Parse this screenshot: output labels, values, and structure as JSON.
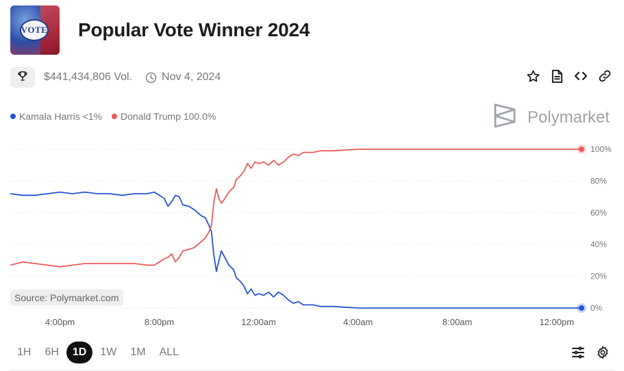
{
  "market": {
    "title": "Popular Vote Winner 2024",
    "thumbnail_text": "VOTE",
    "volume": "$441,434,806 Vol.",
    "date": "Nov 4, 2024",
    "brand": "Polymarket",
    "source": "Source: Polymarket.com"
  },
  "icons": {
    "trophy": "trophy-icon",
    "clock": "clock-icon",
    "star": "star-icon",
    "document": "document-icon",
    "embed": "code-icon",
    "link": "link-icon",
    "filters": "sliders-icon",
    "settings": "gear-icon"
  },
  "legend": [
    {
      "label": "Kamala Harris <1%",
      "color": "#2553d6"
    },
    {
      "label": "Donald Trump 100.0%",
      "color": "#ec5a5a"
    }
  ],
  "time_ranges": [
    {
      "label": "1H",
      "active": false
    },
    {
      "label": "6H",
      "active": false
    },
    {
      "label": "1D",
      "active": true
    },
    {
      "label": "1W",
      "active": false
    },
    {
      "label": "1M",
      "active": false
    },
    {
      "label": "ALL",
      "active": false
    }
  ],
  "chart_data": {
    "type": "line",
    "xlabel": "",
    "ylabel": "",
    "ylim": [
      0,
      100
    ],
    "xlim": [
      14.0,
      37.0
    ],
    "x_unit": "hour",
    "x_ticks": [
      {
        "x": 16,
        "label": "4:00pm"
      },
      {
        "x": 20,
        "label": "8:00pm"
      },
      {
        "x": 24,
        "label": "12:00am"
      },
      {
        "x": 28,
        "label": "4:00am"
      },
      {
        "x": 32,
        "label": "8:00am"
      },
      {
        "x": 36,
        "label": "12:00pm"
      }
    ],
    "y_ticks": [
      {
        "y": 100,
        "label": "100%"
      },
      {
        "y": 80,
        "label": "80%"
      },
      {
        "y": 60,
        "label": "60%"
      },
      {
        "y": 40,
        "label": "40%"
      },
      {
        "y": 20,
        "label": "20%"
      },
      {
        "y": 0,
        "label": "0%"
      }
    ],
    "grid": true,
    "legend_position": "top-left",
    "series": [
      {
        "name": "Kamala Harris",
        "color": "#2553d6",
        "points": [
          [
            14.0,
            72
          ],
          [
            14.5,
            71
          ],
          [
            15.0,
            71
          ],
          [
            15.5,
            72
          ],
          [
            16.0,
            73
          ],
          [
            16.5,
            72
          ],
          [
            17.0,
            73
          ],
          [
            17.5,
            72
          ],
          [
            18.0,
            72
          ],
          [
            18.5,
            71
          ],
          [
            19.0,
            72
          ],
          [
            19.5,
            72
          ],
          [
            19.8,
            73
          ],
          [
            20.0,
            71
          ],
          [
            20.2,
            69
          ],
          [
            20.35,
            64
          ],
          [
            20.5,
            67
          ],
          [
            20.65,
            71
          ],
          [
            20.8,
            70
          ],
          [
            20.95,
            65
          ],
          [
            21.2,
            64
          ],
          [
            21.4,
            62
          ],
          [
            21.55,
            60
          ],
          [
            21.7,
            58
          ],
          [
            21.85,
            57
          ],
          [
            22.0,
            52
          ],
          [
            22.1,
            48
          ],
          [
            22.2,
            33
          ],
          [
            22.3,
            23
          ],
          [
            22.4,
            30
          ],
          [
            22.5,
            36
          ],
          [
            22.6,
            33
          ],
          [
            22.8,
            27
          ],
          [
            23.0,
            24
          ],
          [
            23.1,
            19
          ],
          [
            23.25,
            17
          ],
          [
            23.4,
            14
          ],
          [
            23.55,
            9
          ],
          [
            23.7,
            12
          ],
          [
            23.85,
            8
          ],
          [
            24.0,
            9
          ],
          [
            24.2,
            8
          ],
          [
            24.4,
            10
          ],
          [
            24.6,
            7
          ],
          [
            24.8,
            10
          ],
          [
            25.0,
            8
          ],
          [
            25.2,
            5
          ],
          [
            25.4,
            3
          ],
          [
            25.6,
            4
          ],
          [
            25.8,
            2
          ],
          [
            26.0,
            2
          ],
          [
            26.2,
            2
          ],
          [
            26.5,
            1
          ],
          [
            27.0,
            1
          ],
          [
            28.0,
            0
          ],
          [
            29.0,
            0
          ],
          [
            30.0,
            0
          ],
          [
            31.0,
            0
          ],
          [
            32.0,
            0
          ],
          [
            33.0,
            0
          ],
          [
            34.0,
            0
          ],
          [
            35.0,
            0
          ],
          [
            36.0,
            0
          ],
          [
            37.0,
            0
          ]
        ]
      },
      {
        "name": "Donald Trump",
        "color": "#ec5a5a",
        "points": [
          [
            14.0,
            27
          ],
          [
            14.5,
            29
          ],
          [
            15.0,
            28
          ],
          [
            15.5,
            27
          ],
          [
            16.0,
            26
          ],
          [
            16.5,
            27
          ],
          [
            17.0,
            28
          ],
          [
            17.5,
            28
          ],
          [
            18.0,
            28
          ],
          [
            18.5,
            28
          ],
          [
            19.0,
            28
          ],
          [
            19.5,
            27
          ],
          [
            19.8,
            27
          ],
          [
            20.0,
            29
          ],
          [
            20.2,
            31
          ],
          [
            20.35,
            32
          ],
          [
            20.5,
            34
          ],
          [
            20.65,
            29
          ],
          [
            20.8,
            32
          ],
          [
            20.95,
            36
          ],
          [
            21.2,
            37
          ],
          [
            21.4,
            38
          ],
          [
            21.55,
            40
          ],
          [
            21.7,
            42
          ],
          [
            21.85,
            44
          ],
          [
            22.0,
            48
          ],
          [
            22.1,
            52
          ],
          [
            22.2,
            67
          ],
          [
            22.3,
            75
          ],
          [
            22.4,
            69
          ],
          [
            22.5,
            66
          ],
          [
            22.6,
            68
          ],
          [
            22.8,
            73
          ],
          [
            23.0,
            76
          ],
          [
            23.1,
            81
          ],
          [
            23.25,
            83
          ],
          [
            23.4,
            86
          ],
          [
            23.55,
            91
          ],
          [
            23.7,
            88
          ],
          [
            23.85,
            92
          ],
          [
            24.0,
            91
          ],
          [
            24.2,
            92
          ],
          [
            24.4,
            90
          ],
          [
            24.6,
            93
          ],
          [
            24.8,
            90
          ],
          [
            25.0,
            92
          ],
          [
            25.2,
            95
          ],
          [
            25.4,
            97
          ],
          [
            25.6,
            96
          ],
          [
            25.8,
            98
          ],
          [
            26.0,
            98
          ],
          [
            26.2,
            98
          ],
          [
            26.5,
            99
          ],
          [
            27.0,
            99
          ],
          [
            28.0,
            100
          ],
          [
            29.0,
            100
          ],
          [
            30.0,
            100
          ],
          [
            31.0,
            100
          ],
          [
            32.0,
            100
          ],
          [
            33.0,
            100
          ],
          [
            34.0,
            100
          ],
          [
            35.0,
            100
          ],
          [
            36.0,
            100
          ],
          [
            37.0,
            100
          ]
        ]
      }
    ]
  }
}
